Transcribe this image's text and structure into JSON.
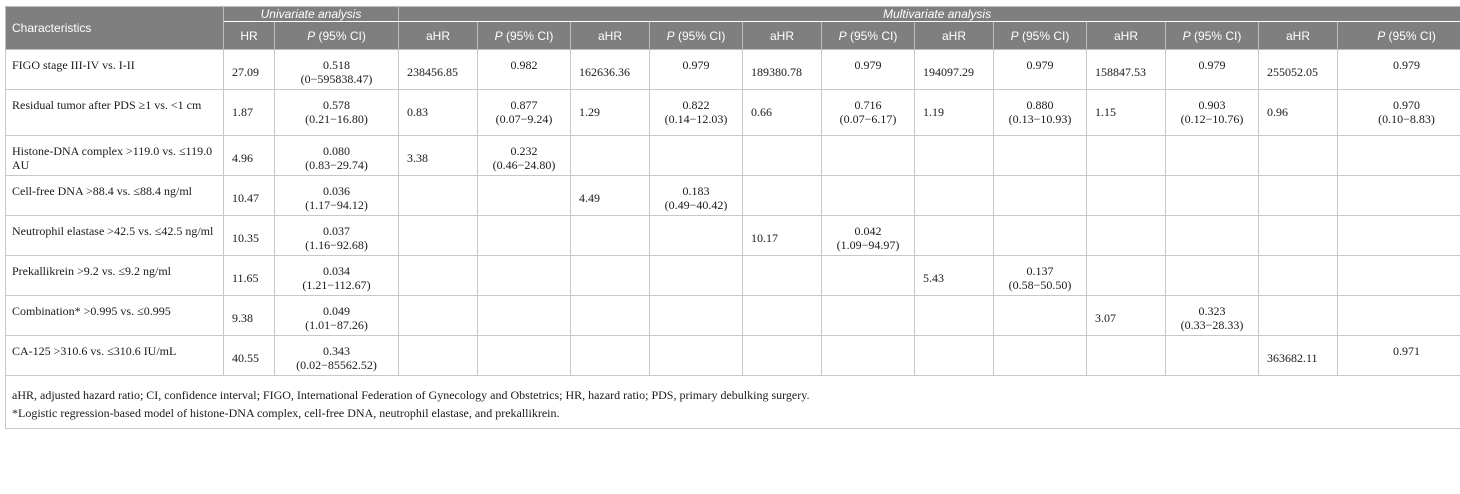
{
  "header": {
    "characteristics": "Characteristics",
    "univariate": "Univariate analysis",
    "multivariate": "Multivariate analysis",
    "columns": [
      "HR",
      "P (95% CI)",
      "aHR",
      "P (95% CI)",
      "aHR",
      "P (95% CI)",
      "aHR",
      "P (95% CI)",
      "aHR",
      "P (95% CI)",
      "aHR",
      "P (95% CI)",
      "aHR",
      "P (95% CI)"
    ]
  },
  "rows": [
    {
      "label": "FIGO stage   III-IV vs. I-II",
      "cells": [
        {
          "v": "27.09"
        },
        {
          "p": "0.518",
          "ci": "(0−595838.47)"
        },
        {
          "v": "238456.85"
        },
        {
          "p": "0.982",
          "ci": ""
        },
        {
          "v": "162636.36"
        },
        {
          "p": "0.979",
          "ci": ""
        },
        {
          "v": "189380.78"
        },
        {
          "p": "0.979",
          "ci": ""
        },
        {
          "v": "194097.29"
        },
        {
          "p": "0.979",
          "ci": ""
        },
        {
          "v": "158847.53"
        },
        {
          "p": "0.979",
          "ci": ""
        },
        {
          "v": "255052.05"
        },
        {
          "p": "0.979",
          "ci": ""
        }
      ]
    },
    {
      "label": "Residual tumor after PDS   ≥1 vs. <1 cm",
      "cells": [
        {
          "v": "1.87"
        },
        {
          "p": "0.578",
          "ci": "(0.21−16.80)"
        },
        {
          "v": "0.83"
        },
        {
          "p": "0.877",
          "ci": "(0.07−9.24)"
        },
        {
          "v": "1.29"
        },
        {
          "p": "0.822",
          "ci": "(0.14−12.03)"
        },
        {
          "v": "0.66"
        },
        {
          "p": "0.716",
          "ci": "(0.07−6.17)"
        },
        {
          "v": "1.19"
        },
        {
          "p": "0.880",
          "ci": "(0.13−10.93)"
        },
        {
          "v": "1.15"
        },
        {
          "p": "0.903",
          "ci": "(0.12−10.76)"
        },
        {
          "v": "0.96"
        },
        {
          "p": "0.970",
          "ci": "(0.10−8.83)"
        }
      ]
    },
    {
      "label": "Histone-DNA complex   >119.0 vs. ≤119.0 AU",
      "cells": [
        {
          "v": "4.96"
        },
        {
          "p": "0.080",
          "ci": "(0.83−29.74)"
        },
        {
          "v": "3.38"
        },
        {
          "p": "0.232",
          "ci": "(0.46−24.80)"
        },
        {
          "v": ""
        },
        {
          "p": "",
          "ci": ""
        },
        {
          "v": ""
        },
        {
          "p": "",
          "ci": ""
        },
        {
          "v": ""
        },
        {
          "p": "",
          "ci": ""
        },
        {
          "v": ""
        },
        {
          "p": "",
          "ci": ""
        },
        {
          "v": ""
        },
        {
          "p": "",
          "ci": ""
        }
      ]
    },
    {
      "label": "Cell-free DNA   >88.4 vs. ≤88.4 ng/ml",
      "cells": [
        {
          "v": "10.47"
        },
        {
          "p": "0.036",
          "ci": "(1.17−94.12)"
        },
        {
          "v": ""
        },
        {
          "p": "",
          "ci": ""
        },
        {
          "v": "4.49"
        },
        {
          "p": "0.183",
          "ci": "(0.49−40.42)"
        },
        {
          "v": ""
        },
        {
          "p": "",
          "ci": ""
        },
        {
          "v": ""
        },
        {
          "p": "",
          "ci": ""
        },
        {
          "v": ""
        },
        {
          "p": "",
          "ci": ""
        },
        {
          "v": ""
        },
        {
          "p": "",
          "ci": ""
        }
      ]
    },
    {
      "label": "Neutrophil elastase   >42.5 vs. ≤42.5 ng/ml",
      "cells": [
        {
          "v": "10.35"
        },
        {
          "p": "0.037",
          "ci": "(1.16−92.68)"
        },
        {
          "v": ""
        },
        {
          "p": "",
          "ci": ""
        },
        {
          "v": ""
        },
        {
          "p": "",
          "ci": ""
        },
        {
          "v": "10.17"
        },
        {
          "p": "0.042",
          "ci": "(1.09−94.97)"
        },
        {
          "v": ""
        },
        {
          "p": "",
          "ci": ""
        },
        {
          "v": ""
        },
        {
          "p": "",
          "ci": ""
        },
        {
          "v": ""
        },
        {
          "p": "",
          "ci": ""
        }
      ]
    },
    {
      "label": "Prekallikrein   >9.2 vs. ≤9.2 ng/ml",
      "cells": [
        {
          "v": "11.65"
        },
        {
          "p": "0.034",
          "ci": "(1.21−112.67)"
        },
        {
          "v": ""
        },
        {
          "p": "",
          "ci": ""
        },
        {
          "v": ""
        },
        {
          "p": "",
          "ci": ""
        },
        {
          "v": ""
        },
        {
          "p": "",
          "ci": ""
        },
        {
          "v": "5.43"
        },
        {
          "p": "0.137",
          "ci": "(0.58−50.50)"
        },
        {
          "v": ""
        },
        {
          "p": "",
          "ci": ""
        },
        {
          "v": ""
        },
        {
          "p": "",
          "ci": ""
        }
      ]
    },
    {
      "label": "Combination*   >0.995 vs. ≤0.995",
      "cells": [
        {
          "v": "9.38"
        },
        {
          "p": "0.049",
          "ci": "(1.01−87.26)"
        },
        {
          "v": ""
        },
        {
          "p": "",
          "ci": ""
        },
        {
          "v": ""
        },
        {
          "p": "",
          "ci": ""
        },
        {
          "v": ""
        },
        {
          "p": "",
          "ci": ""
        },
        {
          "v": ""
        },
        {
          "p": "",
          "ci": ""
        },
        {
          "v": "3.07"
        },
        {
          "p": "0.323",
          "ci": "(0.33−28.33)"
        },
        {
          "v": ""
        },
        {
          "p": "",
          "ci": ""
        }
      ]
    },
    {
      "label": "CA-125   >310.6 vs. ≤310.6 IU/mL",
      "cells": [
        {
          "v": "40.55"
        },
        {
          "p": "0.343",
          "ci": "(0.02−85562.52)"
        },
        {
          "v": ""
        },
        {
          "p": "",
          "ci": ""
        },
        {
          "v": ""
        },
        {
          "p": "",
          "ci": ""
        },
        {
          "v": ""
        },
        {
          "p": "",
          "ci": ""
        },
        {
          "v": ""
        },
        {
          "p": "",
          "ci": ""
        },
        {
          "v": ""
        },
        {
          "p": "",
          "ci": ""
        },
        {
          "v": "363682.11"
        },
        {
          "p": "0.971",
          "ci": ""
        }
      ]
    }
  ],
  "footnotes": [
    "aHR, adjusted hazard ratio; CI, confidence interval; FIGO, International Federation of Gynecology and Obstetrics; HR, hazard ratio; PDS, primary debulking surgery.",
    "*Logistic regression-based model of histone-DNA complex, cell-free DNA, neutrophil elastase, and prekallikrein."
  ]
}
